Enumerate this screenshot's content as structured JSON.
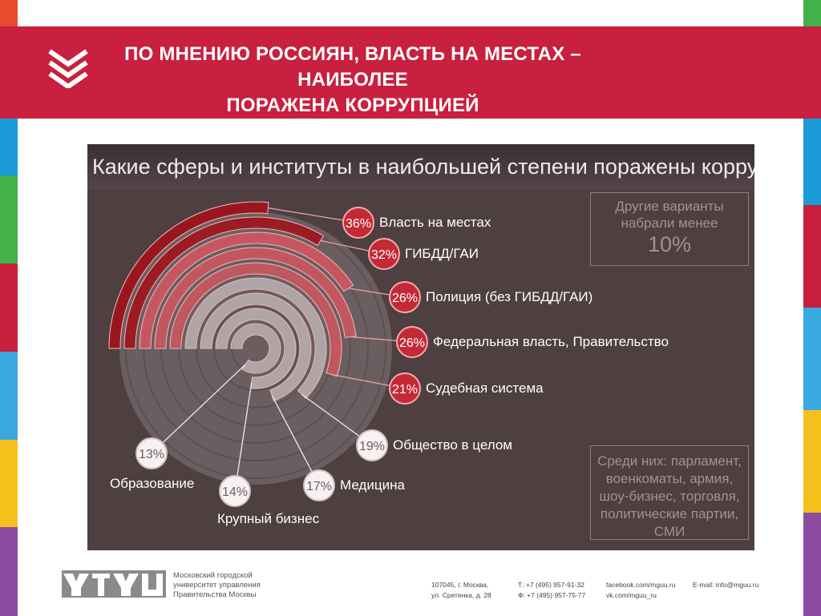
{
  "colors": {
    "header": "#c8203e",
    "panel": "#4e3f41",
    "ring_strong": "#a3121c",
    "ring_light": "#d65660",
    "dial": "#6a5e60",
    "edge_left": [
      "#e94b2f",
      "#1b9bd7",
      "#43b04a",
      "#c71f3e",
      "#3aa9e0",
      "#f4c11c",
      "#8c4ca1"
    ],
    "edge_right": [
      "#43b04a",
      "#1b9bd7",
      "#c71f3e",
      "#3aa9e0",
      "#f4c11c",
      "#8c4ca1"
    ]
  },
  "slide": {
    "title_line1": "ПО МНЕНИЮ РОССИЯН, ВЛАСТЬ НА МЕСТАХ – НАИБОЛЕЕ",
    "title_line2": "ПОРАЖЕНА КОРРУПЦИЕЙ",
    "icon": "chevrons-down-icon"
  },
  "chart_data": {
    "type": "radial-bar",
    "title": "Какие сферы и институты  в наибольшей степени поражены коррупцией?",
    "unit": "%",
    "items": [
      {
        "label": "Власть на местах",
        "value": 36,
        "value_text": "36%"
      },
      {
        "label": "ГИБДД/ГАИ",
        "value": 32,
        "value_text": "32%"
      },
      {
        "label": "Полиция (без ГИБДД/ГАИ)",
        "value": 26,
        "value_text": "26%"
      },
      {
        "label": "Федеральная   власть, Правительство",
        "value": 26,
        "value_text": "26%"
      },
      {
        "label": "Судебная   система",
        "value": 21,
        "value_text": "21%"
      },
      {
        "label": "Общество в целом",
        "value": 19,
        "value_text": "19%"
      },
      {
        "label": "Медицина",
        "value": 17,
        "value_text": "17%"
      },
      {
        "label": "Крупный бизнес",
        "value": 14,
        "value_text": "14%"
      },
      {
        "label": "Образование",
        "value": 13,
        "value_text": "13%"
      }
    ],
    "note_top": {
      "line1": "Другие варианты",
      "line2": "набрали менее",
      "line3": "10%"
    },
    "note_bottom": {
      "line1": "Среди них: парламент,",
      "line2": "военкоматы, армия,",
      "line3": "шоу-бизнес, торговля,",
      "line4": "политические партии,",
      "line5": "СМИ"
    }
  },
  "footer": {
    "logo": "mguu-logo",
    "uni_line1": "Московский городской",
    "uni_line2": "университет управления",
    "uni_line3": "Правительства Москвы",
    "address1": "107045, г. Москва,",
    "address2": "ул. Сретенка, д. 28",
    "phone1": "Т: +7 (495) 957-91-32",
    "phone2": "Ф: +7 (495) 957-75-77",
    "social1": "facebook.com/mguu.ru",
    "social2": "vk.com/mguu_ru",
    "email": "E-mail: info@mguu.ru"
  }
}
